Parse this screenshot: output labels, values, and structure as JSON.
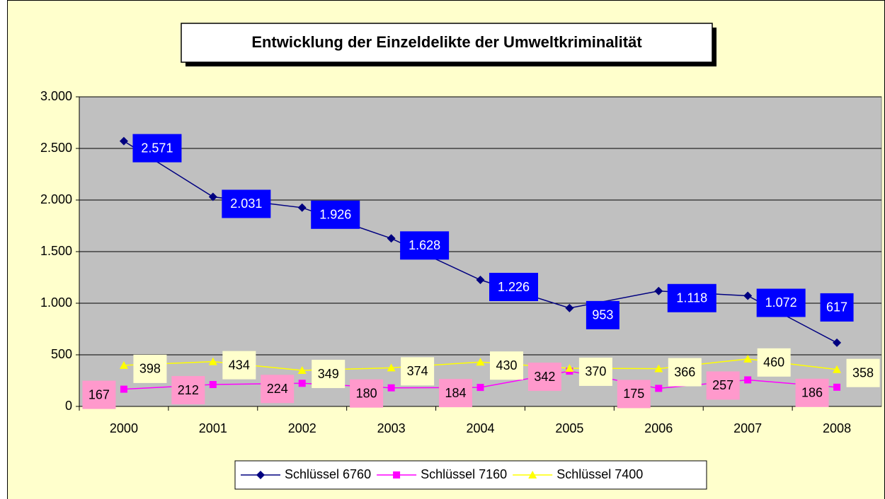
{
  "chart_data": {
    "type": "line",
    "title": "Entwicklung der Einzeldelikte der Umweltkriminalität",
    "categories": [
      "2000",
      "2001",
      "2002",
      "2003",
      "2004",
      "2005",
      "2006",
      "2007",
      "2008"
    ],
    "series": [
      {
        "name": "Schlüssel 6760",
        "color": "#000080",
        "marker": "diamond",
        "label_fill": "#0000FF",
        "label_color": "#FFFFFF",
        "values": [
          2571,
          2031,
          1926,
          1628,
          1226,
          953,
          1118,
          1072,
          617
        ],
        "value_labels": [
          "2.571",
          "2.031",
          "1.926",
          "1.628",
          "1.226",
          "953",
          "1.118",
          "1.072",
          "617"
        ]
      },
      {
        "name": "Schlüssel 7160",
        "color": "#FF00FF",
        "marker": "square",
        "label_fill": "#FF99CC",
        "label_color": "#000000",
        "values": [
          167,
          212,
          224,
          180,
          184,
          342,
          175,
          257,
          186
        ]
      },
      {
        "name": "Schlüssel 7400",
        "color": "#FFFF00",
        "marker": "triangle",
        "label_fill": "#FFFFCC",
        "label_color": "#000000",
        "values": [
          398,
          434,
          349,
          374,
          430,
          370,
          366,
          460,
          358
        ]
      }
    ],
    "ylim": [
      0,
      3000
    ],
    "yticks": [
      0,
      500,
      {
        "value": 1000,
        "label": "1.000"
      },
      {
        "value": 1500,
        "label": "1.500"
      },
      {
        "value": 2000,
        "label": "2.000"
      },
      {
        "value": 2500,
        "label": "2.500"
      },
      {
        "value": 3000,
        "label": "3.000"
      }
    ],
    "grid": true,
    "legend": "bottom"
  }
}
